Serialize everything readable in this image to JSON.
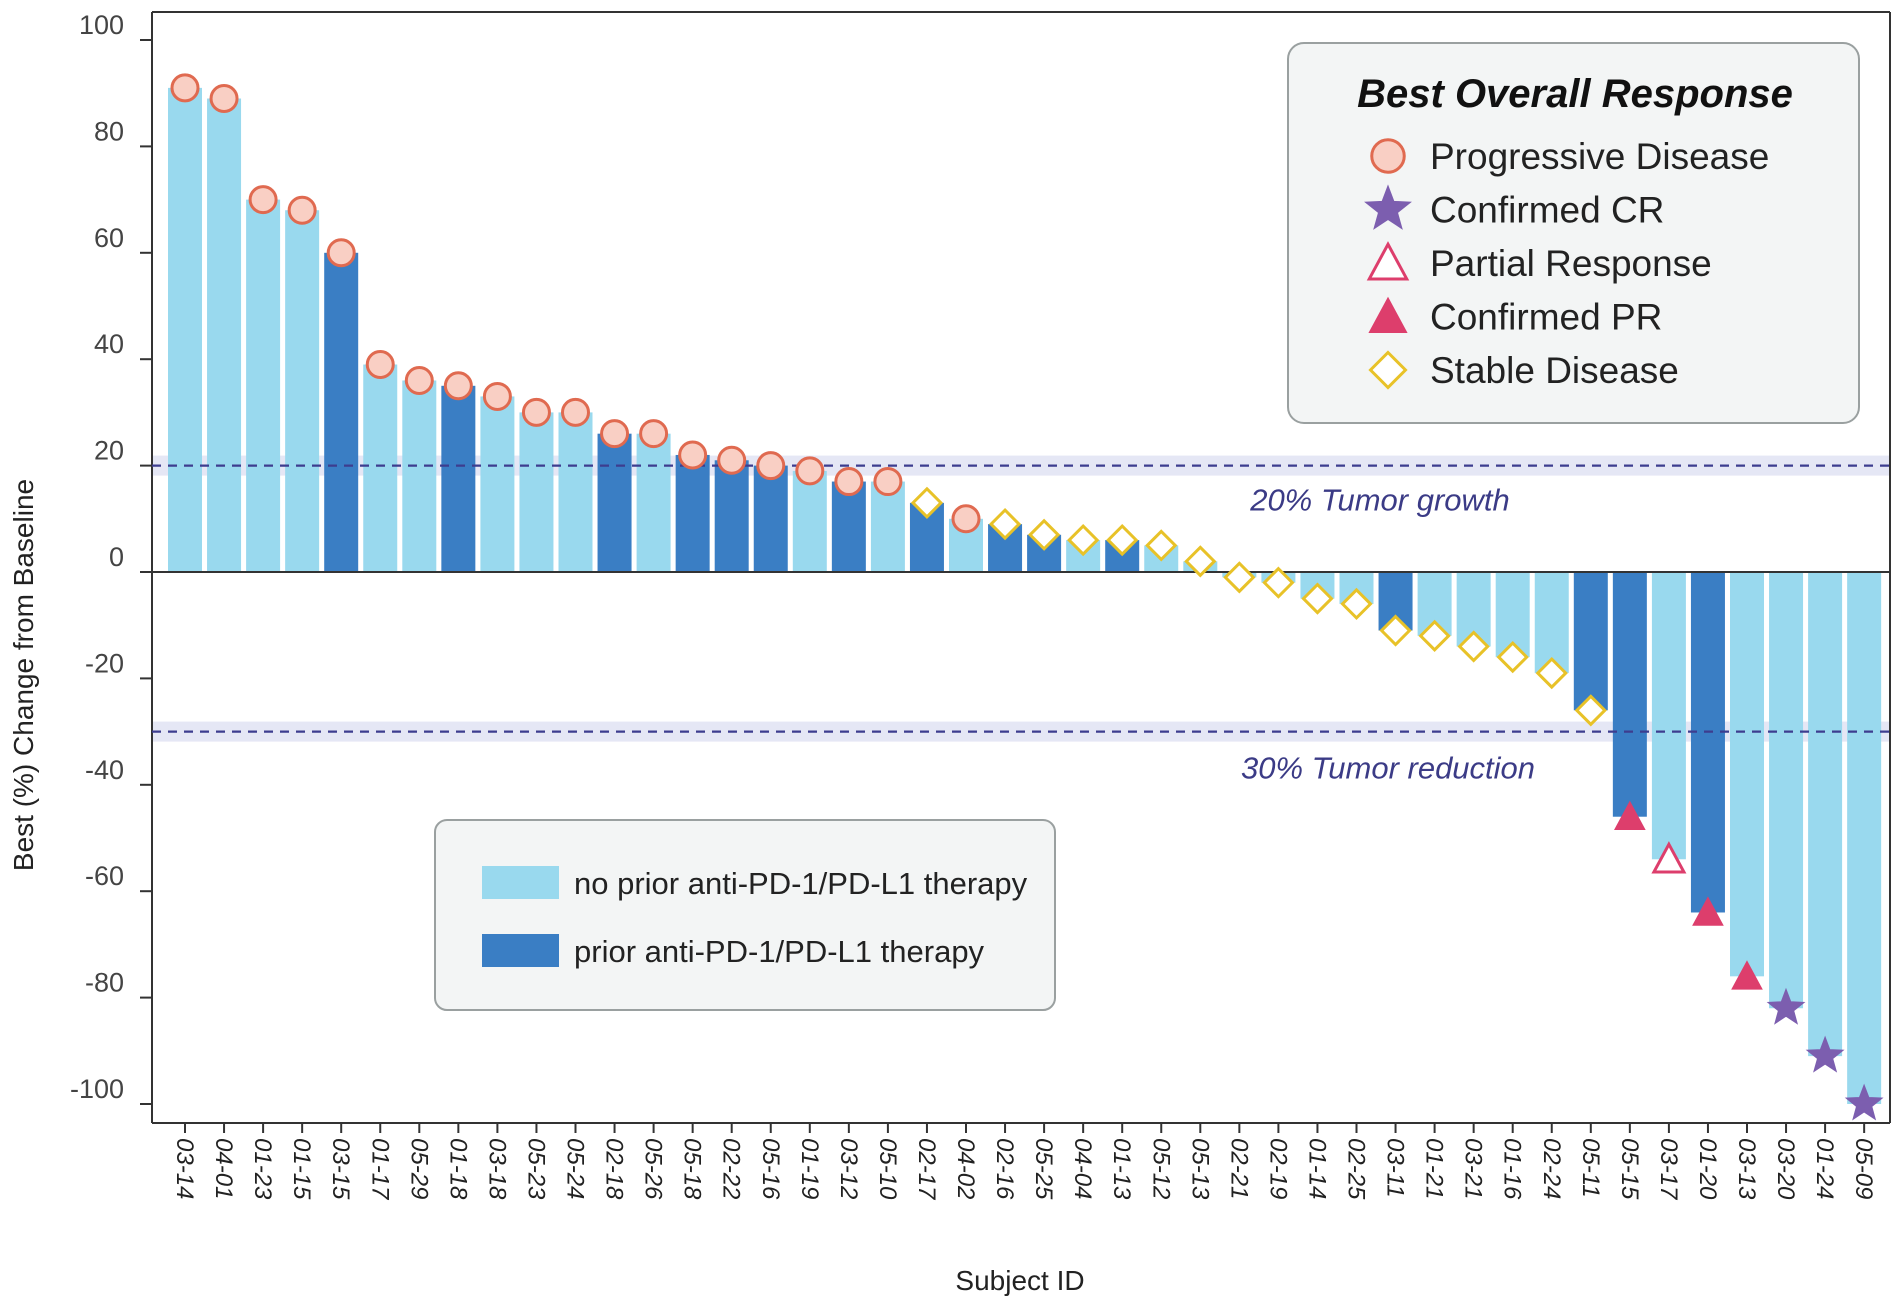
{
  "chart_data": {
    "type": "bar",
    "xlabel": "Subject ID",
    "ylabel": "Best (%) Change from Baseline",
    "ylim": [
      -105,
      105
    ],
    "yticks": [
      100,
      80,
      60,
      40,
      20,
      0,
      -20,
      -40,
      -60,
      -80,
      -100
    ],
    "ytick_labels": [
      "100",
      "80",
      "60",
      "40",
      "20",
      "0",
      "-20",
      "-40",
      "-60",
      "-80",
      "-100"
    ],
    "categories": [
      "03-14",
      "04-01",
      "01-23",
      "01-15",
      "03-15",
      "01-17",
      "05-29",
      "01-18",
      "03-18",
      "05-23",
      "05-24",
      "02-18",
      "05-26",
      "05-18",
      "02-22",
      "05-16",
      "01-19",
      "03-12",
      "05-10",
      "02-17",
      "04-02",
      "02-16",
      "05-25",
      "04-04",
      "01-13",
      "05-12",
      "05-13",
      "02-21",
      "02-19",
      "01-14",
      "02-25",
      "03-11",
      "01-21",
      "03-21",
      "01-16",
      "02-24",
      "05-11",
      "05-15",
      "03-17",
      "01-20",
      "03-13",
      "03-20",
      "01-24",
      "05-09"
    ],
    "values": [
      91,
      89,
      70,
      68,
      60,
      39,
      36,
      35,
      33,
      30,
      30,
      26,
      26,
      22,
      21,
      20,
      19,
      17,
      17,
      13,
      10,
      9,
      7,
      6,
      6,
      5,
      2,
      -1,
      -2,
      -5,
      -6,
      -11,
      -12,
      -14,
      -16,
      -19,
      -26,
      -46,
      -54,
      -64,
      -76,
      -82,
      -91,
      -100
    ],
    "prior_therapy": [
      "no",
      "no",
      "no",
      "no",
      "prior",
      "no",
      "no",
      "prior",
      "no",
      "no",
      "no",
      "prior",
      "no",
      "prior",
      "prior",
      "prior",
      "no",
      "prior",
      "no",
      "prior",
      "no",
      "prior",
      "prior",
      "no",
      "prior",
      "no",
      "no",
      "no",
      "no",
      "no",
      "no",
      "prior",
      "no",
      "no",
      "no",
      "no",
      "prior",
      "prior",
      "no",
      "prior",
      "no",
      "no",
      "no",
      "no"
    ],
    "response": [
      "PD",
      "PD",
      "PD",
      "PD",
      "PD",
      "PD",
      "PD",
      "PD",
      "PD",
      "PD",
      "PD",
      "PD",
      "PD",
      "PD",
      "PD",
      "PD",
      "PD",
      "PD",
      "PD",
      "SD",
      "PD",
      "SD",
      "SD",
      "SD",
      "SD",
      "SD",
      "SD",
      "SD",
      "SD",
      "SD",
      "SD",
      "SD",
      "SD",
      "SD",
      "SD",
      "SD",
      "SD",
      "CPR",
      "PR",
      "CPR",
      "CPR",
      "CCR",
      "CCR",
      "CCR"
    ],
    "reference_lines": [
      {
        "y": 20,
        "label": "20% Tumor growth"
      },
      {
        "y": -30,
        "label": "30% Tumor reduction"
      }
    ],
    "legend_response": {
      "title": "Best Overall Response",
      "placement": "top-right",
      "items": [
        {
          "code": "PD",
          "label": "Progressive Disease",
          "marker": "circle"
        },
        {
          "code": "CCR",
          "label": "Confirmed CR",
          "marker": "star"
        },
        {
          "code": "PR",
          "label": "Partial Response",
          "marker": "open-triangle"
        },
        {
          "code": "CPR",
          "label": "Confirmed PR",
          "marker": "filled-triangle"
        },
        {
          "code": "SD",
          "label": "Stable Disease",
          "marker": "diamond"
        }
      ]
    },
    "legend_therapy": {
      "placement": "bottom-left",
      "items": [
        {
          "code": "no",
          "label": "no prior anti-PD-1/PD-L1 therapy"
        },
        {
          "code": "prior",
          "label": "prior anti-PD-1/PD-L1 therapy"
        }
      ]
    },
    "colors": {
      "no_prior": "#99d9ee",
      "prior": "#3a7ec4",
      "pd_fill": "#f9cfc4",
      "pd_stroke": "#e06a50",
      "star": "#7c5eaf",
      "triangle": "#dd3e6c",
      "diamond": "#e8c228",
      "ref_line": "#3d3d8f",
      "ref_band": "#dfe1f3"
    }
  }
}
